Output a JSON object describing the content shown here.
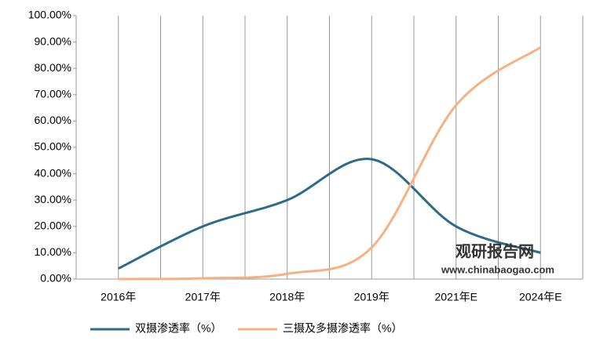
{
  "chart_data": {
    "type": "line",
    "categories": [
      "2016年",
      "2017年",
      "2018年",
      "2019年",
      "2021年E",
      "2024年E"
    ],
    "series": [
      {
        "name": "双摄渗透率（%）",
        "color": "#2e6b8a",
        "values": [
          4,
          20,
          30,
          45.5,
          20,
          10
        ]
      },
      {
        "name": "三摄及多摄渗透率（%）",
        "color": "#f4b183",
        "values": [
          0,
          0.3,
          2,
          12,
          66,
          88
        ]
      }
    ],
    "ylim": [
      0,
      100
    ],
    "yticks": [
      {
        "value": 0,
        "label": "0.00%"
      },
      {
        "value": 10,
        "label": "10.00%"
      },
      {
        "value": 20,
        "label": "20.00%"
      },
      {
        "value": 30,
        "label": "30.00%"
      },
      {
        "value": 40,
        "label": "40.00%"
      },
      {
        "value": 50,
        "label": "50.00%"
      },
      {
        "value": 60,
        "label": "60.00%"
      },
      {
        "value": 70,
        "label": "70.00%"
      },
      {
        "value": 80,
        "label": "80.00%"
      },
      {
        "value": 90,
        "label": "90.00%"
      },
      {
        "value": 100,
        "label": "100.00%"
      }
    ],
    "grid": true,
    "legend": "bottom",
    "watermark": {
      "name": "观研报告网",
      "url": "www.chinabaogao.com"
    }
  }
}
